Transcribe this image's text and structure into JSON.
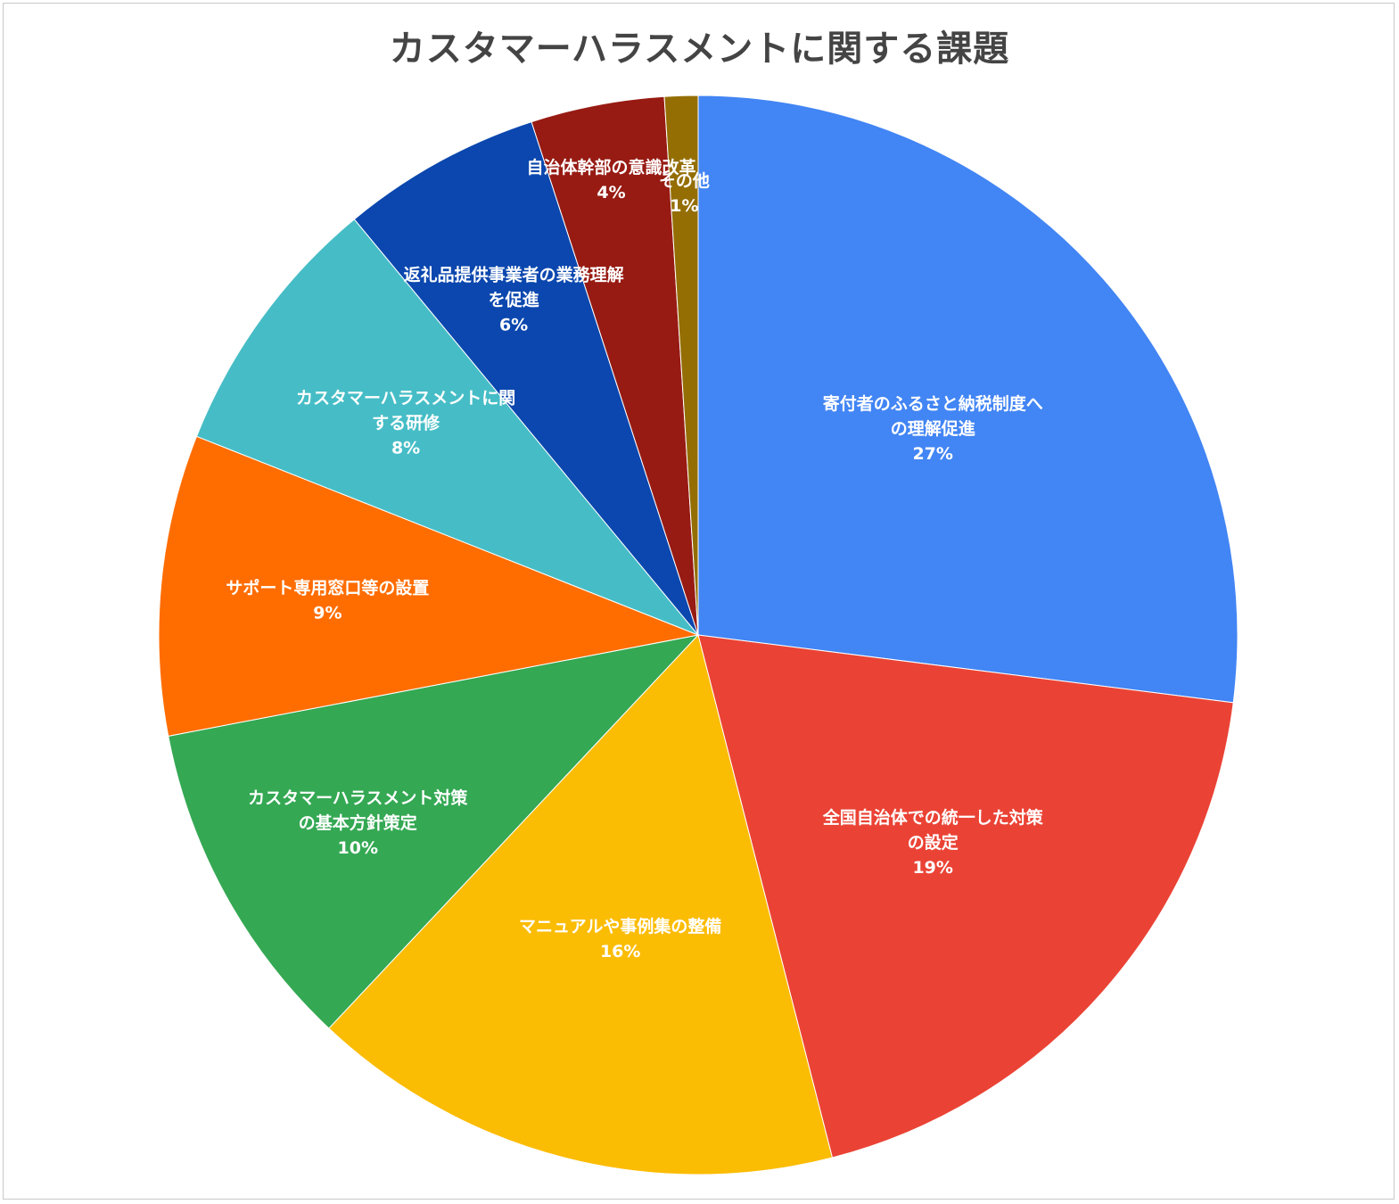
{
  "chart_data": {
    "type": "pie",
    "title": "カスタマーハラスメントに関する課題",
    "slices": [
      {
        "label": [
          "寄付者のふるさと納税制度へ",
          "の理解促進"
        ],
        "value": 27,
        "percent_label": "27%",
        "color": "#4285F4"
      },
      {
        "label": [
          "全国自治体での統一した対策",
          "の設定"
        ],
        "value": 19,
        "percent_label": "19%",
        "color": "#EA4335"
      },
      {
        "label": [
          "マニュアルや事例集の整備"
        ],
        "value": 16,
        "percent_label": "16%",
        "color": "#FBBC04"
      },
      {
        "label": [
          "カスタマーハラスメント対策",
          "の基本方針策定"
        ],
        "value": 10,
        "percent_label": "10%",
        "color": "#34A853"
      },
      {
        "label": [
          "サポート専用窓口等の設置"
        ],
        "value": 9,
        "percent_label": "9%",
        "color": "#FF6D01"
      },
      {
        "label": [
          "カスタマーハラスメントに関",
          "する研修"
        ],
        "value": 8,
        "percent_label": "8%",
        "color": "#46BDC6"
      },
      {
        "label": [
          "返礼品提供事業者の業務理解",
          "を促進"
        ],
        "value": 6,
        "percent_label": "6%",
        "color": "#0B47AE"
      },
      {
        "label": [
          "自治体幹部の意識改革"
        ],
        "value": 4,
        "percent_label": "4%",
        "color": "#971B13"
      },
      {
        "label": [
          "その他"
        ],
        "value": 1,
        "percent_label": "1%",
        "color": "#946E03"
      }
    ],
    "start_angle": "12 o'clock",
    "direction": "clockwise",
    "legend": "none"
  }
}
